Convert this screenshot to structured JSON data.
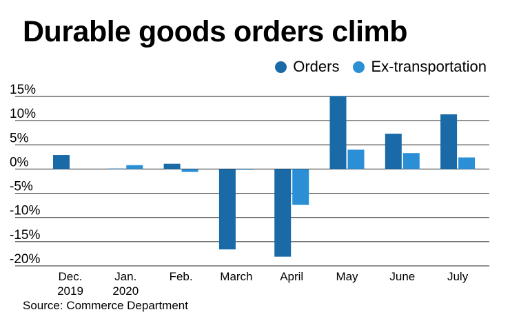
{
  "chart_data": {
    "type": "bar",
    "title": "Durable goods orders climb",
    "categories": [
      [
        "Dec.",
        "2019"
      ],
      [
        "Jan.",
        "2020"
      ],
      [
        "Feb."
      ],
      [
        "March"
      ],
      [
        "April"
      ],
      [
        "May"
      ],
      [
        "June"
      ],
      [
        "July"
      ]
    ],
    "series": [
      {
        "name": "Orders",
        "color": "#1a6aa8",
        "values": [
          2.9,
          0.1,
          1.1,
          -16.6,
          -18.1,
          15.1,
          7.3,
          11.3
        ]
      },
      {
        "name": "Ex-transportation",
        "color": "#2b8fd6",
        "values": [
          null,
          0.8,
          -0.6,
          -0.1,
          -7.4,
          4.0,
          3.3,
          2.4
        ]
      }
    ],
    "y_ticks": [
      15,
      10,
      5,
      0,
      -5,
      -10,
      -15,
      -20
    ],
    "y_tick_labels": [
      "15%",
      "10%",
      "5%",
      "0%",
      "-5%",
      "-10%",
      "-15%",
      "-20%"
    ],
    "ylim": [
      -20,
      15
    ],
    "xlabel": "",
    "ylabel": "",
    "grid": true,
    "legend_position": "top-right"
  },
  "source": "Source: Commerce Department"
}
